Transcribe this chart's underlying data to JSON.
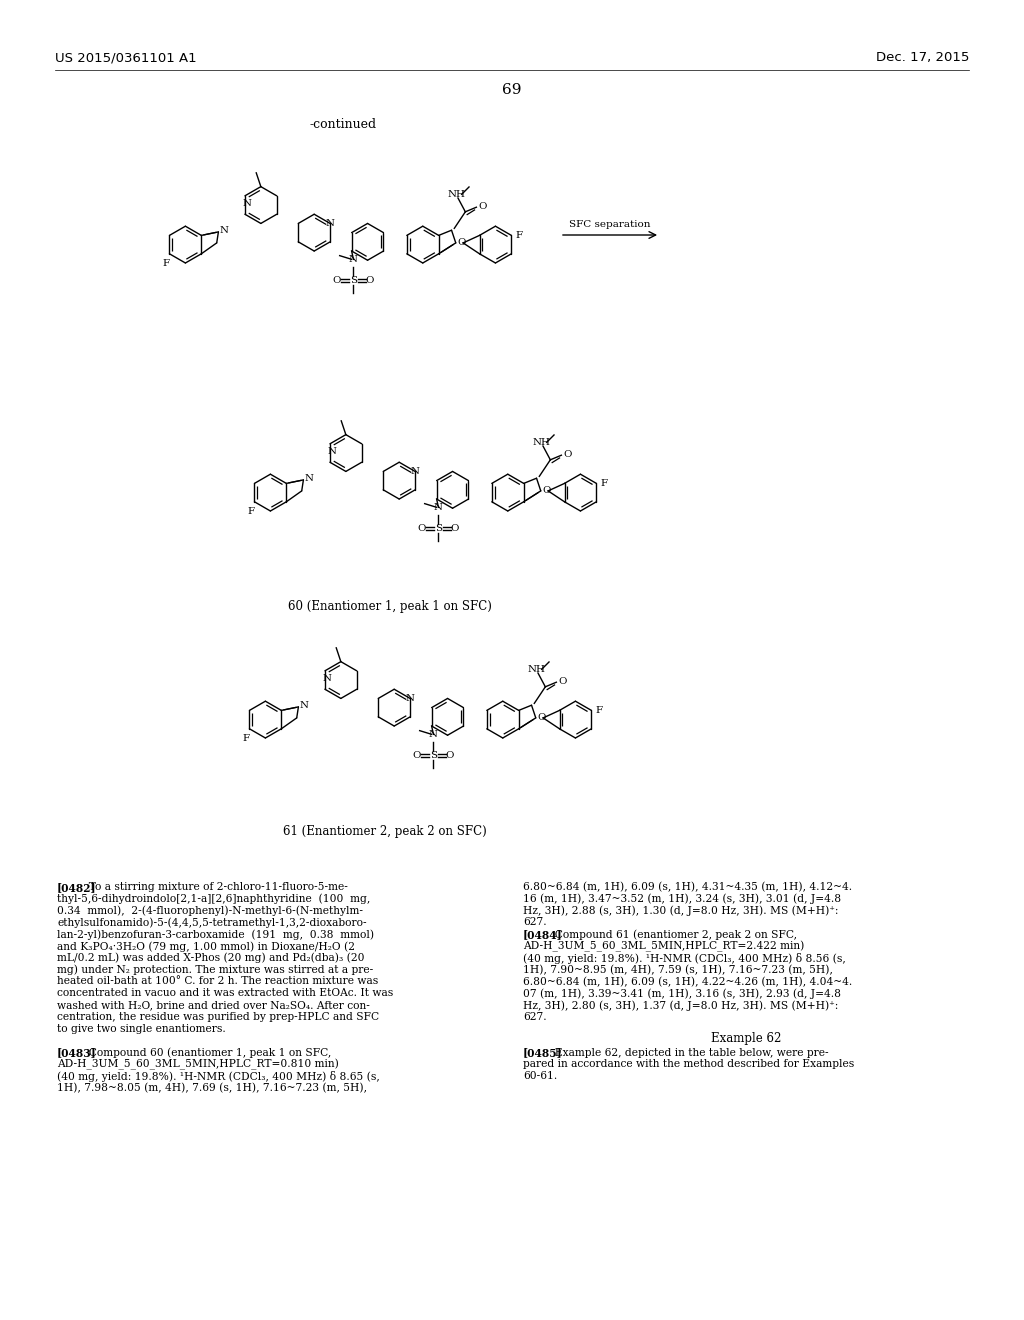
{
  "page_header_left": "US 2015/0361101 A1",
  "page_header_right": "Dec. 17, 2015",
  "page_number": "69",
  "continued_label": "-continued",
  "sfc_label": "SFC separation",
  "compound60_label": "60 (Enantiomer 1, peak 1 on SFC)",
  "compound61_label": "61 (Enantiomer 2, peak 2 on SFC)",
  "example62_header": "Example 62",
  "bg_color": "#ffffff",
  "text_color": "#000000",
  "left_col_lines": [
    "[0482]  To a stirring mixture of 2-chloro-11-fluoro-5-me-",
    "thyl-5,6-dihydroindolo[2,1-a][2,6]naphthyridine  (100  mg,",
    "0.34  mmol),  2-(4-fluorophenyl)-N-methyl-6-(N-methylm-",
    "ethylsulfonamido)-5-(4,4,5,5-tetramethyl-1,3,2-dioxaboro-",
    "lan-2-yl)benzofuran-3-carboxamide  (191  mg,  0.38  mmol)",
    "and K₃PO₄·3H₂O (79 mg, 1.00 mmol) in Dioxane/H₂O (2",
    "mL/0.2 mL) was added X-Phos (20 mg) and Pd₂(dba)₃ (20",
    "mg) under N₂ protection. The mixture was stirred at a pre-",
    "heated oil-bath at 100° C. for 2 h. The reaction mixture was",
    "concentrated in vacuo and it was extracted with EtOAc. It was",
    "washed with H₂O, brine and dried over Na₂SO₄. After con-",
    "centration, the residue was purified by prep-HPLC and SFC",
    "to give two single enantiomers.",
    "",
    "[0483]  Compound 60 (enantiomer 1, peak 1 on SFC,",
    "AD-H_3UM_5_60_3ML_5MIN,HPLC_RT=0.810 min)",
    "(40 mg, yield: 19.8%). ¹H-NMR (CDCl₃, 400 MHz) δ 8.65 (s,",
    "1H), 7.98~8.05 (m, 4H), 7.69 (s, 1H), 7.16~7.23 (m, 5H),"
  ],
  "right_col_lines": [
    "6.80~6.84 (m, 1H), 6.09 (s, 1H), 4.31~4.35 (m, 1H), 4.12~4.",
    "16 (m, 1H), 3.47~3.52 (m, 1H), 3.24 (s, 3H), 3.01 (d, J=4.8",
    "Hz, 3H), 2.88 (s, 3H), 1.30 (d, J=8.0 Hz, 3H). MS (M+H)⁺:",
    "627.",
    "[0484]  Compound 61 (enantiomer 2, peak 2 on SFC,",
    "AD-H_3UM_5_60_3ML_5MIN,HPLC_RT=2.422 min)",
    "(40 mg, yield: 19.8%). ¹H-NMR (CDCl₃, 400 MHz) δ 8.56 (s,",
    "1H), 7.90~8.95 (m, 4H), 7.59 (s, 1H), 7.16~7.23 (m, 5H),",
    "6.80~6.84 (m, 1H), 6.09 (s, 1H), 4.22~4.26 (m, 1H), 4.04~4.",
    "07 (m, 1H), 3.39~3.41 (m, 1H), 3.16 (s, 3H), 2.93 (d, J=4.8",
    "Hz, 3H), 2.80 (s, 3H), 1.37 (d, J=8.0 Hz, 3H). MS (M+H)⁺:",
    "627."
  ],
  "bold_tags": [
    "[0482]",
    "[0483]",
    "[0484]",
    "[0485]"
  ],
  "para0485_lines": [
    "[0485]  Example 62, depicted in the table below, were pre-",
    "pared in accordance with the method described for Examples",
    "60-61."
  ]
}
